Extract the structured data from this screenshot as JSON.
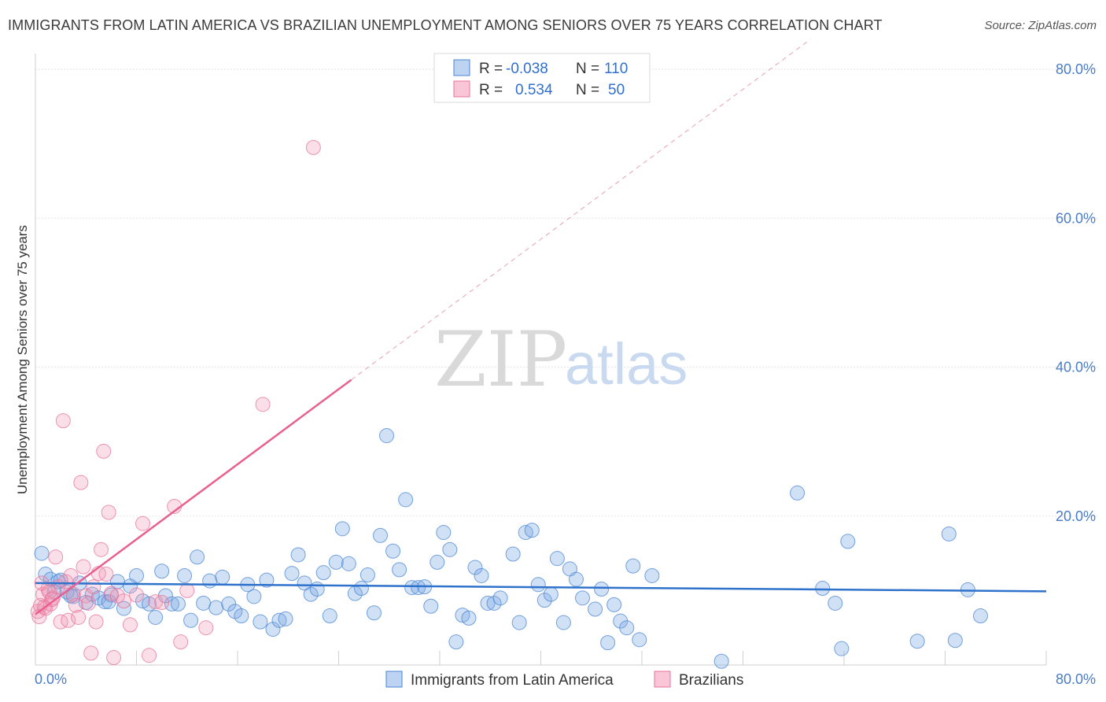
{
  "header": {
    "title": "IMMIGRANTS FROM LATIN AMERICA VS BRAZILIAN UNEMPLOYMENT AMONG SENIORS OVER 75 YEARS CORRELATION CHART",
    "source": "Source: ZipAtlas.com"
  },
  "watermark": {
    "zip": "ZIP",
    "atlas": "atlas"
  },
  "legend_top": {
    "rows": [
      {
        "r_label": "R =",
        "r_value": "-0.038",
        "n_label": "N =",
        "n_value": "110"
      },
      {
        "r_label": "R =",
        "r_value": "0.534",
        "n_label": "N =",
        "n_value": "50"
      }
    ]
  },
  "chart_data": {
    "type": "scatter",
    "title": "IMMIGRANTS FROM LATIN AMERICA VS BRAZILIAN UNEMPLOYMENT AMONG SENIORS OVER 75 YEARS CORRELATION CHART",
    "xlabel": "",
    "ylabel": "Unemployment Among Seniors over 75 years",
    "xlim": [
      0,
      80
    ],
    "ylim": [
      0,
      80
    ],
    "x_tick_labels": [
      "0.0%",
      "80.0%"
    ],
    "y_tick_labels": [
      "20.0%",
      "40.0%",
      "60.0%",
      "80.0%"
    ],
    "y_ticks": [
      20,
      40,
      60,
      80
    ],
    "grid": true,
    "legend_position": "bottom",
    "colors": {
      "blue": "#4a86d4",
      "pink": "#e8739a"
    },
    "series": [
      {
        "name": "Immigrants from Latin America",
        "color": "#4a86d4",
        "trend": {
          "x": [
            0,
            80
          ],
          "y": [
            11.0,
            9.9
          ]
        },
        "points": [
          [
            0.5,
            15.0
          ],
          [
            0.8,
            12.2
          ],
          [
            1.2,
            11.5
          ],
          [
            1.5,
            9.8
          ],
          [
            2.0,
            11.4
          ],
          [
            2.5,
            9.8
          ],
          [
            3.0,
            9.2
          ],
          [
            3.5,
            11.0
          ],
          [
            4.0,
            8.4
          ],
          [
            4.5,
            9.5
          ],
          [
            5.0,
            9.0
          ],
          [
            5.5,
            8.5
          ],
          [
            6.0,
            9.4
          ],
          [
            6.5,
            11.2
          ],
          [
            7.0,
            7.6
          ],
          [
            7.5,
            10.6
          ],
          [
            8.0,
            12.0
          ],
          [
            8.5,
            8.6
          ],
          [
            9.0,
            8.2
          ],
          [
            9.5,
            6.4
          ],
          [
            10.0,
            12.6
          ],
          [
            10.3,
            9.3
          ],
          [
            10.8,
            8.2
          ],
          [
            11.3,
            8.2
          ],
          [
            11.8,
            12.0
          ],
          [
            12.3,
            6.0
          ],
          [
            12.8,
            14.5
          ],
          [
            13.3,
            8.3
          ],
          [
            13.8,
            11.3
          ],
          [
            14.3,
            7.7
          ],
          [
            14.8,
            11.8
          ],
          [
            15.3,
            8.2
          ],
          [
            15.8,
            7.2
          ],
          [
            16.3,
            6.6
          ],
          [
            16.8,
            10.8
          ],
          [
            17.3,
            9.2
          ],
          [
            17.8,
            5.8
          ],
          [
            18.3,
            11.4
          ],
          [
            18.8,
            4.8
          ],
          [
            19.3,
            6.0
          ],
          [
            19.8,
            6.2
          ],
          [
            20.3,
            12.3
          ],
          [
            20.8,
            14.8
          ],
          [
            21.3,
            11.0
          ],
          [
            21.8,
            9.5
          ],
          [
            22.3,
            10.2
          ],
          [
            22.8,
            12.4
          ],
          [
            23.3,
            6.6
          ],
          [
            23.8,
            13.8
          ],
          [
            24.3,
            18.3
          ],
          [
            24.8,
            13.6
          ],
          [
            25.3,
            9.6
          ],
          [
            25.8,
            10.3
          ],
          [
            26.3,
            12.1
          ],
          [
            26.8,
            7.0
          ],
          [
            27.3,
            17.4
          ],
          [
            27.8,
            30.8
          ],
          [
            28.3,
            15.3
          ],
          [
            28.8,
            12.8
          ],
          [
            29.3,
            22.2
          ],
          [
            29.8,
            10.4
          ],
          [
            30.3,
            10.4
          ],
          [
            30.8,
            10.5
          ],
          [
            31.3,
            7.9
          ],
          [
            31.8,
            13.8
          ],
          [
            32.3,
            17.8
          ],
          [
            32.8,
            15.5
          ],
          [
            33.3,
            3.1
          ],
          [
            33.8,
            6.7
          ],
          [
            34.3,
            6.3
          ],
          [
            34.8,
            13.1
          ],
          [
            35.3,
            12.0
          ],
          [
            35.8,
            8.3
          ],
          [
            36.3,
            8.3
          ],
          [
            36.8,
            9.0
          ],
          [
            37.8,
            14.9
          ],
          [
            38.3,
            5.7
          ],
          [
            38.8,
            17.8
          ],
          [
            39.3,
            18.1
          ],
          [
            39.8,
            10.8
          ],
          [
            40.3,
            8.7
          ],
          [
            40.8,
            9.5
          ],
          [
            41.3,
            14.3
          ],
          [
            41.8,
            5.7
          ],
          [
            42.3,
            12.9
          ],
          [
            42.8,
            11.5
          ],
          [
            43.3,
            9.0
          ],
          [
            44.3,
            7.5
          ],
          [
            44.8,
            10.2
          ],
          [
            45.3,
            3.0
          ],
          [
            45.8,
            8.1
          ],
          [
            46.3,
            5.9
          ],
          [
            46.8,
            5.0
          ],
          [
            47.3,
            13.3
          ],
          [
            47.8,
            3.4
          ],
          [
            48.8,
            12.0
          ],
          [
            54.3,
            0.5
          ],
          [
            60.3,
            23.1
          ],
          [
            62.3,
            10.3
          ],
          [
            63.3,
            8.3
          ],
          [
            63.8,
            2.2
          ],
          [
            64.3,
            16.6
          ],
          [
            69.8,
            3.2
          ],
          [
            72.3,
            17.6
          ],
          [
            72.8,
            3.3
          ],
          [
            73.8,
            10.1
          ],
          [
            74.8,
            6.6
          ],
          [
            5.8,
            8.5
          ],
          [
            2.8,
            9.3
          ],
          [
            1.8,
            11.2
          ]
        ]
      },
      {
        "name": "Brazilians",
        "color": "#e8739a",
        "trend": {
          "x": [
            0,
            25
          ],
          "y": [
            6.8,
            38.3
          ],
          "dashed_x": [
            25,
            80
          ],
          "dashed_y": [
            38.3,
            107.5
          ]
        },
        "points": [
          [
            0.2,
            7.2
          ],
          [
            0.4,
            8.0
          ],
          [
            0.6,
            9.5
          ],
          [
            0.8,
            7.6
          ],
          [
            1.0,
            10.2
          ],
          [
            1.2,
            8.2
          ],
          [
            1.4,
            9.0
          ],
          [
            1.6,
            14.5
          ],
          [
            1.8,
            10.5
          ],
          [
            2.0,
            5.8
          ],
          [
            2.2,
            32.8
          ],
          [
            2.4,
            11.2
          ],
          [
            2.6,
            6.0
          ],
          [
            2.8,
            12.0
          ],
          [
            3.0,
            9.5
          ],
          [
            3.2,
            8.0
          ],
          [
            3.4,
            6.4
          ],
          [
            3.6,
            24.5
          ],
          [
            3.8,
            13.2
          ],
          [
            4.0,
            9.3
          ],
          [
            4.2,
            8.3
          ],
          [
            4.4,
            1.6
          ],
          [
            4.6,
            10.5
          ],
          [
            4.8,
            5.8
          ],
          [
            5.0,
            12.3
          ],
          [
            5.2,
            15.5
          ],
          [
            5.4,
            28.7
          ],
          [
            5.6,
            12.2
          ],
          [
            5.8,
            20.5
          ],
          [
            6.0,
            9.6
          ],
          [
            6.2,
            1.0
          ],
          [
            6.5,
            9.3
          ],
          [
            7.0,
            8.6
          ],
          [
            7.5,
            5.4
          ],
          [
            8.0,
            9.4
          ],
          [
            8.5,
            19.0
          ],
          [
            9.0,
            1.3
          ],
          [
            9.5,
            8.5
          ],
          [
            10.0,
            8.4
          ],
          [
            11.0,
            21.3
          ],
          [
            11.5,
            3.1
          ],
          [
            12.0,
            10.0
          ],
          [
            13.5,
            5.0
          ],
          [
            18.0,
            35.0
          ],
          [
            22.0,
            69.5
          ],
          [
            0.3,
            6.5
          ],
          [
            0.5,
            11.0
          ],
          [
            0.7,
            7.8
          ],
          [
            1.1,
            9.8
          ],
          [
            1.3,
            8.8
          ]
        ]
      }
    ]
  },
  "bottom_legend": [
    {
      "label": "Immigrants from Latin America",
      "color": "#4a86d4"
    },
    {
      "label": "Brazilians",
      "color": "#e8739a"
    }
  ]
}
